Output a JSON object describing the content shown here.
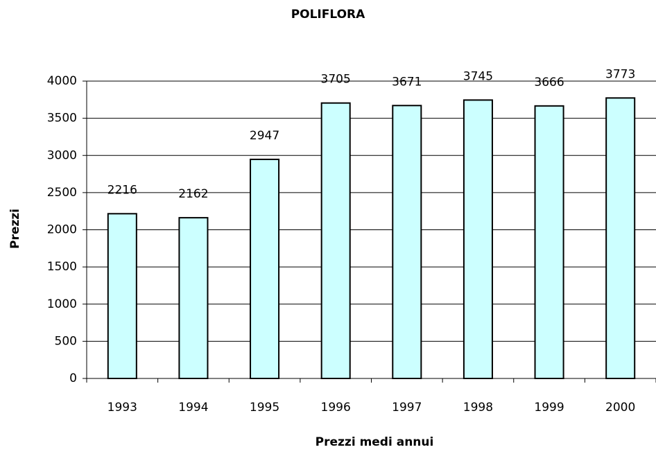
{
  "chart_data": {
    "type": "bar",
    "title": "POLIFLORA",
    "x_label": "Prezzi medi annui",
    "y_label": "Prezzi",
    "categories": [
      "1993",
      "1994",
      "1995",
      "1996",
      "1997",
      "1998",
      "1999",
      "2000"
    ],
    "values": [
      2216,
      2162,
      2947,
      3705,
      3671,
      3745,
      3666,
      3773
    ],
    "color": "#ccffff",
    "ylim": [
      0,
      4000
    ],
    "yticks": [
      0,
      500,
      1000,
      1500,
      2000,
      2500,
      3000,
      3500,
      4000
    ],
    "grid": true
  }
}
